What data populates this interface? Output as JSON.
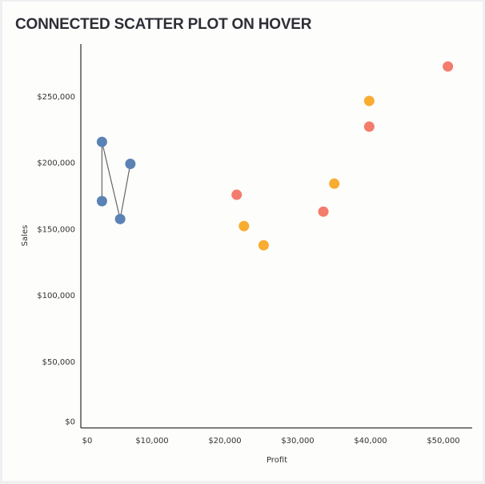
{
  "title": "CONNECTED SCATTER PLOT ON HOVER",
  "chart_data": {
    "type": "scatter",
    "title": "CONNECTED SCATTER PLOT ON HOVER",
    "xlabel": "Profit",
    "ylabel": "Sales",
    "xlim": [
      0,
      54000
    ],
    "ylim": [
      0,
      285000
    ],
    "x_ticks": [
      0,
      10000,
      20000,
      30000,
      40000,
      50000
    ],
    "x_tick_labels": [
      "$0",
      "$10,000",
      "$20,000",
      "$30,000",
      "$40,000",
      "$50,000"
    ],
    "y_ticks": [
      0,
      50000,
      100000,
      150000,
      200000,
      250000
    ],
    "y_tick_labels": [
      "$0",
      "$50,000",
      "$100,000",
      "$150,000",
      "$200,000",
      "$250,000"
    ],
    "grid": false,
    "series": [
      {
        "color": "#5b82b5",
        "connected": true,
        "points": [
          [
            2900,
            170800
          ],
          [
            2900,
            215500
          ],
          [
            5400,
            157300
          ],
          [
            6800,
            198900
          ]
        ]
      },
      {
        "color": "#f47c6c",
        "connected": false,
        "points": [
          [
            21400,
            175600
          ],
          [
            33300,
            162900
          ],
          [
            39600,
            227000
          ],
          [
            50400,
            272400
          ]
        ]
      },
      {
        "color": "#f8ac30",
        "connected": false,
        "points": [
          [
            22400,
            152000
          ],
          [
            25100,
            137500
          ],
          [
            34800,
            184000
          ],
          [
            39600,
            246400
          ]
        ]
      }
    ]
  }
}
